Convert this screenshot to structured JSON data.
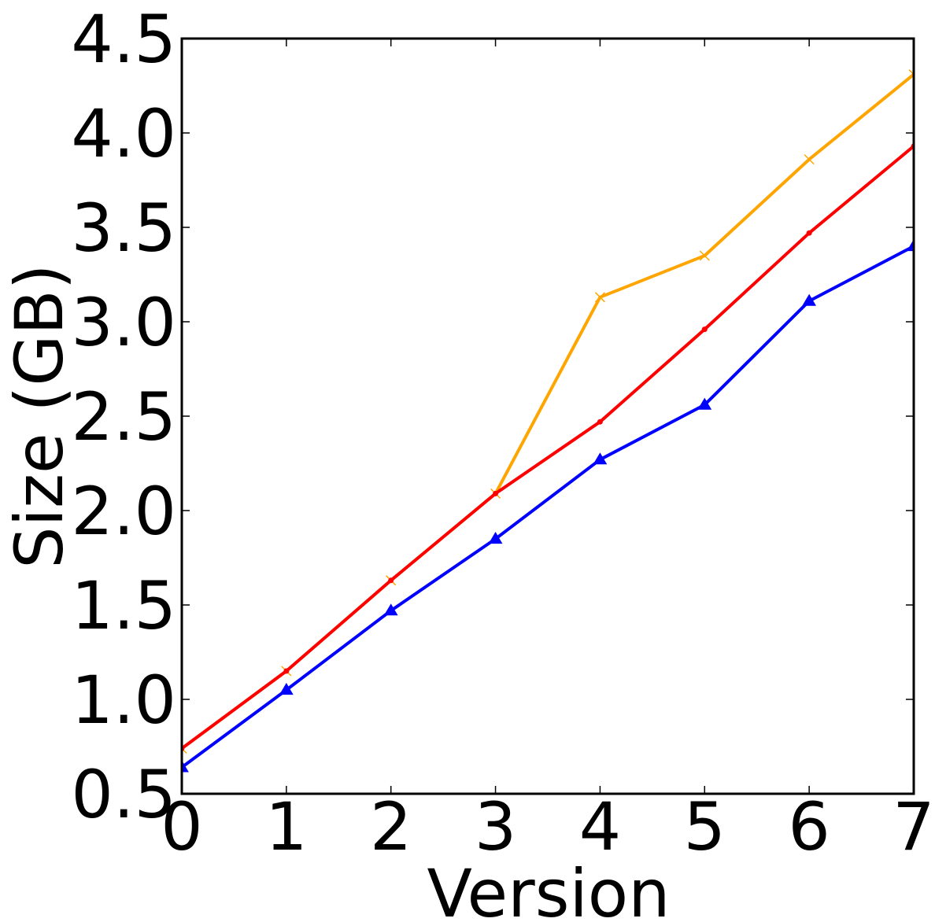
{
  "chart_data": {
    "type": "line",
    "title": "",
    "xlabel": "Version",
    "ylabel": "Size (GB)",
    "xlim": [
      0,
      7
    ],
    "ylim": [
      0.5,
      4.5
    ],
    "grid": false,
    "x_ticks": [
      0,
      1,
      2,
      3,
      4,
      5,
      6,
      7
    ],
    "x_tick_labels": [
      "0",
      "1",
      "2",
      "3",
      "4",
      "5",
      "6",
      "7"
    ],
    "y_ticks": [
      0.5,
      1.0,
      1.5,
      2.0,
      2.5,
      3.0,
      3.5,
      4.0,
      4.5
    ],
    "y_tick_labels": [
      "0.5",
      "1.0",
      "1.5",
      "2.0",
      "2.5",
      "3.0",
      "3.5",
      "4.0",
      "4.5"
    ],
    "x": [
      0,
      1,
      2,
      3,
      4,
      5,
      6,
      7
    ],
    "series": [
      {
        "color": "#ffa500",
        "marker": "x",
        "values": [
          0.74,
          1.15,
          1.63,
          2.09,
          3.13,
          3.35,
          3.86,
          4.31
        ]
      },
      {
        "color": "#ff0000",
        "marker": "dot",
        "values": [
          0.74,
          1.15,
          1.63,
          2.09,
          2.47,
          2.96,
          3.47,
          3.93
        ]
      },
      {
        "color": "#0000ff",
        "marker": "triangle",
        "values": [
          0.64,
          1.05,
          1.47,
          1.85,
          2.27,
          2.56,
          3.11,
          3.4
        ]
      }
    ]
  }
}
